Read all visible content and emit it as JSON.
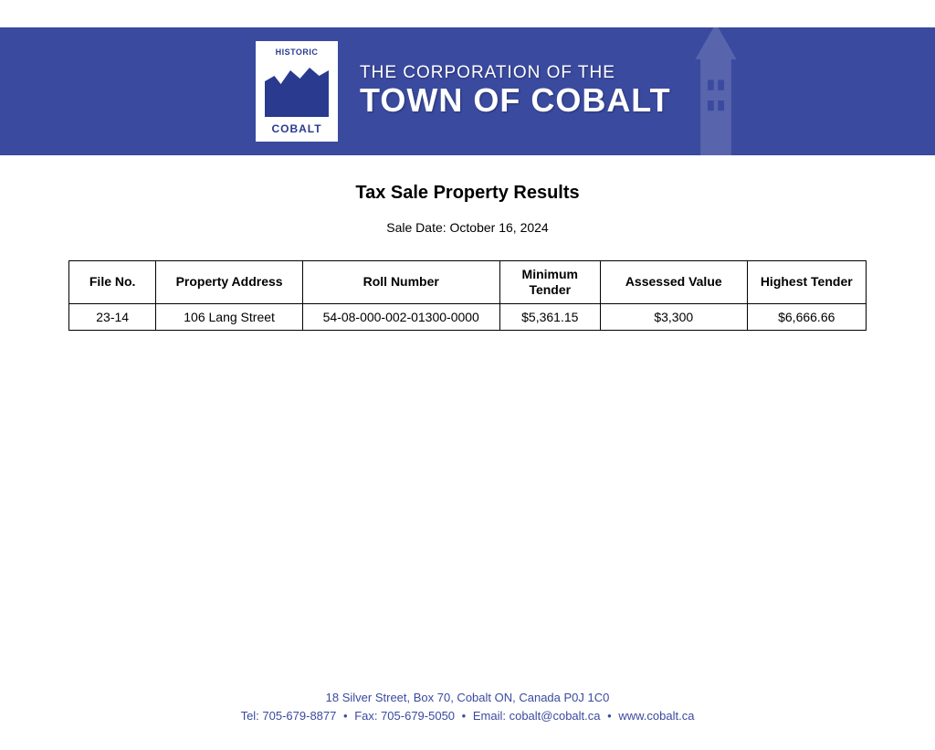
{
  "banner": {
    "logo_top": "HISTORIC",
    "logo_bottom": "COBALT",
    "line1": "THE CORPORATION OF THE",
    "line2": "TOWN OF COBALT",
    "bg_color": "#3a4a9f",
    "text_color": "#ffffff"
  },
  "page": {
    "title": "Tax Sale Property Results",
    "sale_date_label": "Sale Date: October 16, 2024"
  },
  "table": {
    "columns": [
      "File No.",
      "Property Address",
      "Roll Number",
      "Minimum Tender",
      "Assessed Value",
      "Highest Tender"
    ],
    "rows": [
      [
        "23-14",
        "106 Lang Street",
        "54-08-000-002-01300-0000",
        "$5,361.15",
        "$3,300",
        "$6,666.66"
      ]
    ],
    "border_color": "#000000",
    "header_fontsize": 14,
    "cell_fontsize": 14
  },
  "footer": {
    "address": "18 Silver Street, Box 70, Cobalt ON, Canada  P0J 1C0",
    "tel_label": "Tel: 705-679-8877",
    "fax_label": "Fax: 705-679-5050",
    "email_label": "Email: cobalt@cobalt.ca",
    "web_label": "www.cobalt.ca",
    "color": "#3a4a9f"
  }
}
